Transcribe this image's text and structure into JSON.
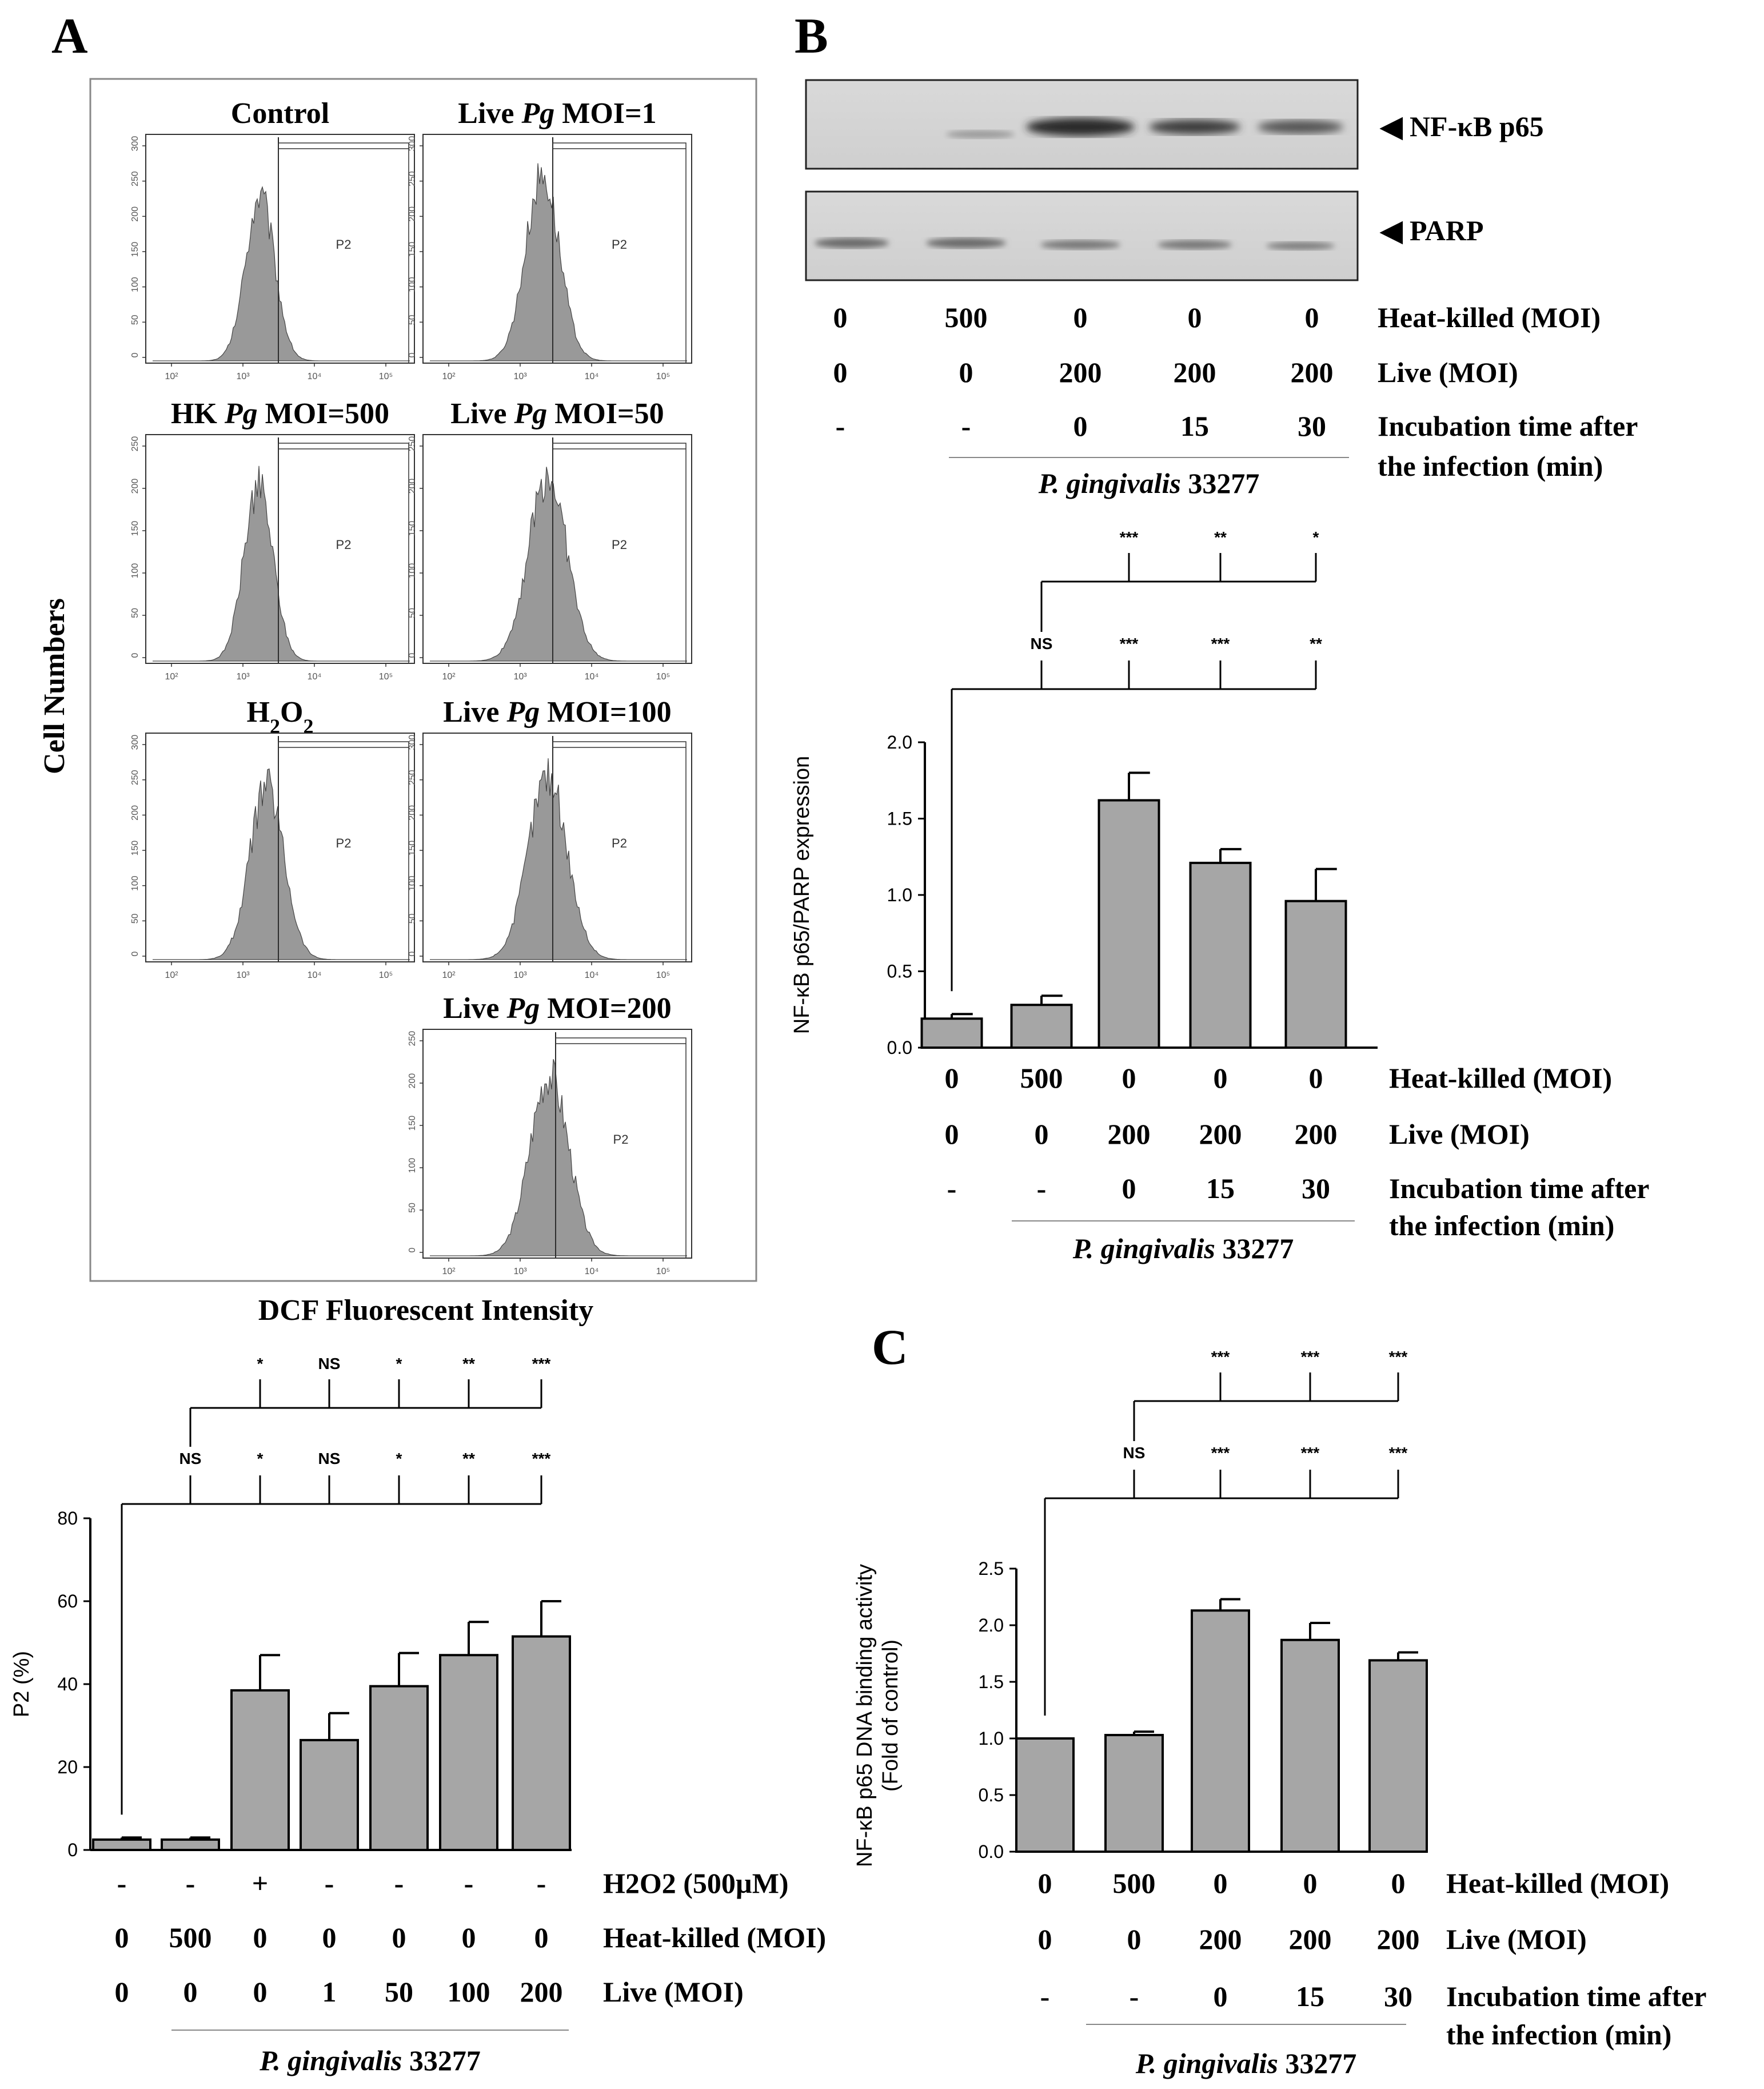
{
  "panels": {
    "A": "A",
    "B": "B",
    "C": "C"
  },
  "panelA": {
    "histograms": [
      {
        "title": "Control",
        "title_parts": [
          {
            "t": "Control",
            "i": false
          }
        ],
        "gate": "P2",
        "yticks": [
          "300",
          "250",
          "200",
          "150",
          "100",
          "50",
          "0"
        ],
        "xticks": [
          "10²",
          "10³",
          "10⁴",
          "10⁵"
        ],
        "peak": 0.1,
        "spread": 0.06,
        "height": 0.8
      },
      {
        "title": "Live Pg MOI=1",
        "title_parts": [
          {
            "t": "Live ",
            "i": false
          },
          {
            "t": "Pg",
            "i": true
          },
          {
            "t": " MOI=1",
            "i": false
          }
        ],
        "gate": "P2",
        "yticks": [
          "300",
          "250",
          "200",
          "150",
          "100",
          "50",
          "0"
        ],
        "xticks": [
          "10²",
          "10³",
          "10⁴",
          "10⁵"
        ],
        "peak": 0.13,
        "spread": 0.07,
        "height": 0.9
      },
      {
        "title": "HK Pg MOI=500",
        "title_parts": [
          {
            "t": "HK ",
            "i": false
          },
          {
            "t": "Pg",
            "i": true
          },
          {
            "t": " MOI=500",
            "i": false
          }
        ],
        "gate": "P2",
        "yticks": [
          "250",
          "200",
          "150",
          "100",
          "50",
          "0"
        ],
        "xticks": [
          "10²",
          "10³",
          "10⁴",
          "10⁵"
        ],
        "peak": 0.09,
        "spread": 0.06,
        "height": 0.85
      },
      {
        "title": "Live Pg MOI=50",
        "title_parts": [
          {
            "t": "Live ",
            "i": false
          },
          {
            "t": "Pg",
            "i": true
          },
          {
            "t": " MOI=50",
            "i": false
          }
        ],
        "gate": "P2",
        "yticks": [
          "250",
          "200",
          "150",
          "100",
          "50",
          "0"
        ],
        "xticks": [
          "10²",
          "10³",
          "10⁴",
          "10⁵"
        ],
        "peak": 0.16,
        "spread": 0.08,
        "height": 0.9
      },
      {
        "title": "H2O2",
        "title_parts": [
          {
            "t": "H",
            "i": false
          },
          {
            "t": "2",
            "sub": true
          },
          {
            "t": "O",
            "i": false
          },
          {
            "t": "2",
            "sub": true
          }
        ],
        "gate": "P2",
        "yticks": [
          "300",
          "250",
          "200",
          "150",
          "100",
          "50",
          "0"
        ],
        "xticks": [
          "10²",
          "10³",
          "10⁴",
          "10⁵"
        ],
        "peak": 0.14,
        "spread": 0.07,
        "height": 0.85
      },
      {
        "title": "Live Pg MOI=100",
        "title_parts": [
          {
            "t": "Live ",
            "i": false
          },
          {
            "t": "Pg",
            "i": true
          },
          {
            "t": " MOI=100",
            "i": false
          }
        ],
        "gate": "P2",
        "yticks": [
          "300",
          "250",
          "200",
          "150",
          "100",
          "50",
          "0"
        ],
        "xticks": [
          "10²",
          "10³",
          "10⁴",
          "10⁵"
        ],
        "peak": 0.16,
        "spread": 0.08,
        "height": 0.9
      },
      {
        "title": "Live Pg MOI=200",
        "title_parts": [
          {
            "t": "Live ",
            "i": false
          },
          {
            "t": "Pg",
            "i": true
          },
          {
            "t": " MOI=200",
            "i": false
          }
        ],
        "gate": "P2",
        "yticks": [
          "250",
          "200",
          "150",
          "100",
          "50",
          "0"
        ],
        "xticks": [
          "10²",
          "10³",
          "10⁴",
          "10⁵"
        ],
        "peak": 0.17,
        "spread": 0.08,
        "height": 0.88
      }
    ],
    "ylabel": "Cell Numbers",
    "xlabel": "DCF Fluorescent Intensity"
  },
  "panelB": {
    "blot_labels": [
      "◀ NF-κB p65",
      "◀ PARP"
    ],
    "blot_table": {
      "heat_killed": [
        "0",
        "500",
        "0",
        "0",
        "0"
      ],
      "live": [
        "0",
        "0",
        "200",
        "200",
        "200"
      ],
      "time": [
        "-",
        "-",
        "0",
        "15",
        "30"
      ],
      "row_labels": [
        "Heat-killed (MOI)",
        "Live (MOI)",
        "Incubation time after",
        "the infection (min)"
      ],
      "strain_italic": "P. gingivalis",
      "strain_num": " 33277"
    }
  },
  "chart_data": [
    {
      "id": "A",
      "type": "bar",
      "title": "",
      "ylabel": "P2 (%)",
      "xlabel": "",
      "ylim": [
        0,
        80
      ],
      "yticks": [
        0,
        20,
        40,
        60,
        80
      ],
      "categories": [
        "Control",
        "HK 500",
        "H2O2",
        "Live 1",
        "Live 50",
        "Live 100",
        "Live 200"
      ],
      "values": [
        2.5,
        2.5,
        38.5,
        26.5,
        39.5,
        47,
        51.5
      ],
      "errors": [
        0.5,
        0.5,
        8.5,
        6.5,
        8,
        8,
        8.5
      ],
      "sig_top": [
        "*",
        "NS",
        "*",
        "**",
        "***"
      ],
      "sig_bottom": [
        "NS",
        "*",
        "NS",
        "*",
        "**",
        "***"
      ],
      "row_labels": [
        "H2O2 (500µM)",
        "Heat-killed (MOI)",
        "Live (MOI)"
      ],
      "rows": {
        "h2o2": [
          "-",
          "-",
          "+",
          "-",
          "-",
          "-",
          "-"
        ],
        "heat_killed": [
          "0",
          "500",
          "0",
          "0",
          "0",
          "0",
          "0"
        ],
        "live": [
          "0",
          "0",
          "0",
          "1",
          "50",
          "100",
          "200"
        ]
      },
      "strain_italic": "P. gingivalis",
      "strain_num": " 33277"
    },
    {
      "id": "B",
      "type": "bar",
      "title": "",
      "ylabel": "NF-κB p65/PARP expression",
      "xlabel": "",
      "ylim": [
        0,
        2.0
      ],
      "yticks": [
        "0.0",
        "0.5",
        "1.0",
        "1.5",
        "2.0"
      ],
      "categories": [
        "Control",
        "HK 500",
        "Live 200 0min",
        "Live 200 15min",
        "Live 200 30min"
      ],
      "values": [
        0.19,
        0.28,
        1.62,
        1.21,
        0.96
      ],
      "errors": [
        0.03,
        0.06,
        0.18,
        0.09,
        0.21
      ],
      "sig_top": [
        "***",
        "**",
        "*"
      ],
      "sig_bottom": [
        "NS",
        "***",
        "***",
        "**"
      ],
      "row_labels": [
        "Heat-killed (MOI)",
        "Live (MOI)",
        "Incubation time after",
        "the infection (min)"
      ],
      "rows": {
        "heat_killed": [
          "0",
          "500",
          "0",
          "0",
          "0"
        ],
        "live": [
          "0",
          "0",
          "200",
          "200",
          "200"
        ],
        "time": [
          "-",
          "-",
          "0",
          "15",
          "30"
        ]
      },
      "strain_italic": "P. gingivalis",
      "strain_num": " 33277"
    },
    {
      "id": "C",
      "type": "bar",
      "title": "",
      "ylabel": "NF-κB p65 DNA binding activity",
      "ylabel2": "(Fold of control)",
      "xlabel": "",
      "ylim": [
        0,
        2.5
      ],
      "yticks": [
        "0.0",
        "0.5",
        "1.0",
        "1.5",
        "2.0",
        "2.5"
      ],
      "categories": [
        "Control",
        "HK 500",
        "Live 200 0min",
        "Live 200 15min",
        "Live 200 30min"
      ],
      "values": [
        1.0,
        1.03,
        2.13,
        1.87,
        1.69
      ],
      "errors": [
        0.0,
        0.03,
        0.1,
        0.15,
        0.07
      ],
      "sig_top": [
        "***",
        "***",
        "***"
      ],
      "sig_bottom": [
        "NS",
        "***",
        "***",
        "***"
      ],
      "row_labels": [
        "Heat-killed (MOI)",
        "Live (MOI)",
        "Incubation time after",
        "the infection (min)"
      ],
      "rows": {
        "heat_killed": [
          "0",
          "500",
          "0",
          "0",
          "0"
        ],
        "live": [
          "0",
          "0",
          "200",
          "200",
          "200"
        ],
        "time": [
          "-",
          "-",
          "0",
          "15",
          "30"
        ]
      },
      "strain_italic": "P. gingivalis",
      "strain_num": " 33277"
    }
  ]
}
